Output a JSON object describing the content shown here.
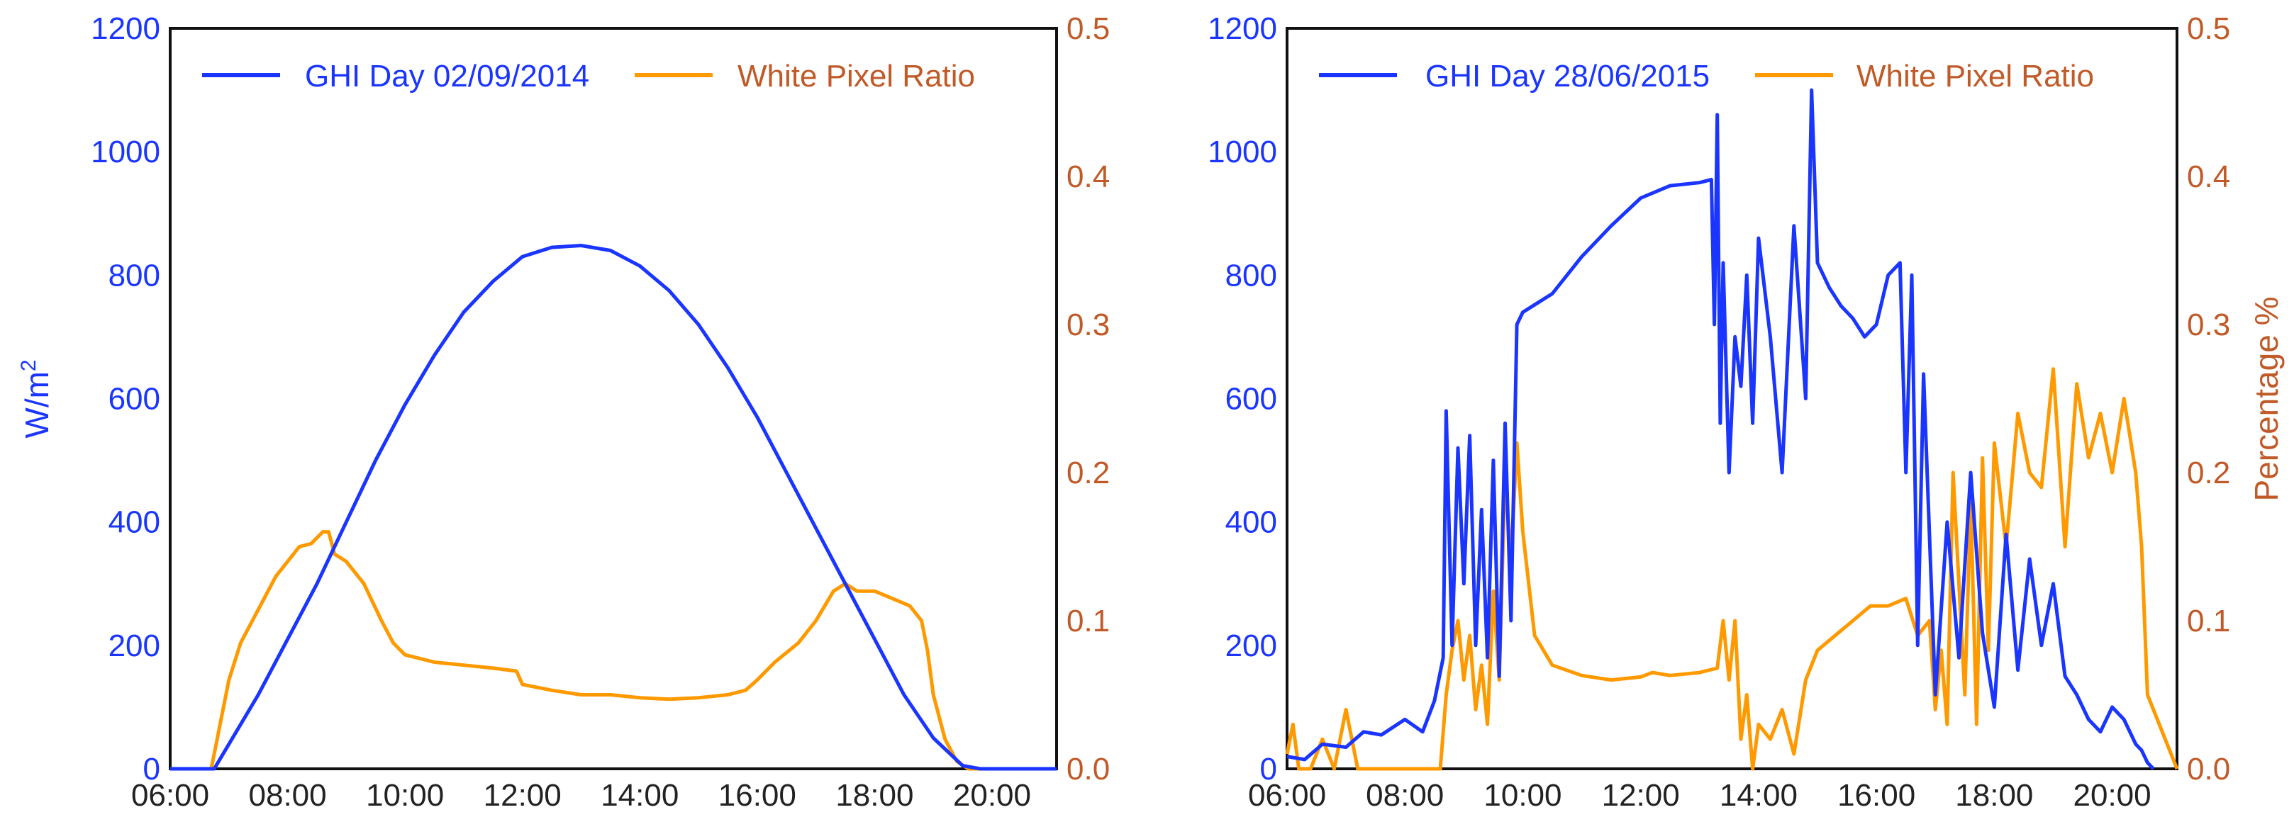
{
  "colors": {
    "ghi": "#1a35ff",
    "wpr": "#ff9900",
    "right_axis": "#c05a28",
    "frame": "#111111"
  },
  "chart_data": [
    {
      "type": "line",
      "panel": "left",
      "title": "",
      "xlabel": "",
      "ylabel_left": "W/m",
      "ylabel_left_sup": "2",
      "ylabel_right": "",
      "x_ticks": [
        "06:00",
        "08:00",
        "10:00",
        "12:00",
        "14:00",
        "16:00",
        "18:00",
        "20:00"
      ],
      "y_left_ticks": [
        "0",
        "200",
        "400",
        "600",
        "800",
        "1000",
        "1200"
      ],
      "y_right_ticks": [
        "0.0",
        "0.1",
        "0.2",
        "0.3",
        "0.4",
        "0.5"
      ],
      "xlim": [
        6.0,
        21.1
      ],
      "ylim_left": [
        0,
        1200
      ],
      "ylim_right": [
        0,
        0.5
      ],
      "legend": [
        "GHI Day 02/09/2014",
        "White Pixel Ratio"
      ],
      "legend_position": "top",
      "series": [
        {
          "name": "GHI Day 02/09/2014",
          "axis": "left",
          "x": [
            6.0,
            6.75,
            7.0,
            7.5,
            8.0,
            8.5,
            9.0,
            9.5,
            10.0,
            10.5,
            11.0,
            11.5,
            12.0,
            12.5,
            13.0,
            13.5,
            14.0,
            14.5,
            15.0,
            15.5,
            16.0,
            16.5,
            17.0,
            17.5,
            18.0,
            18.5,
            19.0,
            19.5,
            19.8,
            21.1
          ],
          "values": [
            0,
            0,
            40,
            120,
            210,
            300,
            400,
            500,
            590,
            670,
            740,
            790,
            830,
            845,
            848,
            840,
            815,
            775,
            720,
            650,
            570,
            480,
            390,
            300,
            210,
            120,
            50,
            5,
            0,
            0
          ]
        },
        {
          "name": "White Pixel Ratio",
          "axis": "right",
          "x": [
            6.0,
            6.7,
            6.8,
            7.0,
            7.2,
            7.4,
            7.6,
            7.8,
            8.0,
            8.2,
            8.4,
            8.6,
            8.7,
            8.8,
            9.0,
            9.3,
            9.6,
            9.8,
            10.0,
            10.5,
            11.0,
            11.5,
            11.9,
            12.0,
            12.5,
            13.0,
            13.5,
            14.0,
            14.5,
            15.0,
            15.5,
            15.8,
            16.0,
            16.3,
            16.7,
            17.0,
            17.3,
            17.5,
            17.7,
            18.0,
            18.3,
            18.6,
            18.8,
            18.9,
            19.0,
            19.2,
            19.4,
            19.6,
            21.1
          ],
          "values": [
            0.0,
            0.0,
            0.02,
            0.06,
            0.085,
            0.1,
            0.115,
            0.13,
            0.14,
            0.15,
            0.152,
            0.16,
            0.16,
            0.145,
            0.14,
            0.125,
            0.1,
            0.085,
            0.077,
            0.072,
            0.07,
            0.068,
            0.066,
            0.057,
            0.053,
            0.05,
            0.05,
            0.048,
            0.047,
            0.048,
            0.05,
            0.053,
            0.06,
            0.072,
            0.085,
            0.1,
            0.12,
            0.125,
            0.12,
            0.12,
            0.115,
            0.11,
            0.1,
            0.08,
            0.05,
            0.02,
            0.005,
            0.0,
            0.0
          ]
        }
      ]
    },
    {
      "type": "line",
      "panel": "right",
      "title": "",
      "xlabel": "",
      "ylabel_left": "",
      "ylabel_right": "Percentage %",
      "x_ticks": [
        "06:00",
        "08:00",
        "10:00",
        "12:00",
        "14:00",
        "16:00",
        "18:00",
        "20:00"
      ],
      "y_left_ticks": [
        "0",
        "200",
        "400",
        "600",
        "800",
        "1000",
        "1200"
      ],
      "y_right_ticks": [
        "0.0",
        "0.1",
        "0.2",
        "0.3",
        "0.4",
        "0.5"
      ],
      "xlim": [
        6.0,
        21.1
      ],
      "ylim_left": [
        0,
        1200
      ],
      "ylim_right": [
        0,
        0.5
      ],
      "legend": [
        "GHI Day 28/06/2015",
        "White Pixel Ratio"
      ],
      "legend_position": "top",
      "series": [
        {
          "name": "GHI Day 28/06/2015",
          "axis": "left",
          "x": [
            6.0,
            6.3,
            6.6,
            7.0,
            7.3,
            7.6,
            8.0,
            8.3,
            8.5,
            8.65,
            8.7,
            8.8,
            8.9,
            9.0,
            9.1,
            9.2,
            9.3,
            9.4,
            9.5,
            9.6,
            9.7,
            9.8,
            9.9,
            10.0,
            10.5,
            11.0,
            11.5,
            12.0,
            12.5,
            13.0,
            13.2,
            13.25,
            13.3,
            13.35,
            13.4,
            13.5,
            13.6,
            13.7,
            13.8,
            13.9,
            14.0,
            14.2,
            14.4,
            14.6,
            14.8,
            14.9,
            15.0,
            15.2,
            15.4,
            15.6,
            15.8,
            16.0,
            16.2,
            16.4,
            16.5,
            16.6,
            16.7,
            16.8,
            17.0,
            17.2,
            17.4,
            17.6,
            17.8,
            18.0,
            18.2,
            18.4,
            18.6,
            18.8,
            19.0,
            19.2,
            19.4,
            19.6,
            19.8,
            20.0,
            20.2,
            20.4,
            20.5,
            20.6,
            20.7
          ],
          "values": [
            20,
            15,
            40,
            35,
            60,
            55,
            80,
            60,
            110,
            180,
            580,
            200,
            520,
            300,
            540,
            200,
            420,
            180,
            500,
            150,
            560,
            240,
            720,
            740,
            770,
            830,
            880,
            925,
            945,
            950,
            955,
            720,
            1060,
            560,
            820,
            480,
            700,
            620,
            800,
            560,
            860,
            700,
            480,
            880,
            600,
            1100,
            820,
            780,
            750,
            730,
            700,
            720,
            800,
            820,
            480,
            800,
            200,
            640,
            120,
            400,
            180,
            480,
            220,
            100,
            380,
            160,
            340,
            200,
            300,
            150,
            120,
            80,
            60,
            100,
            80,
            40,
            30,
            10,
            0
          ]
        },
        {
          "name": "White Pixel Ratio",
          "axis": "right",
          "x": [
            6.0,
            6.1,
            6.2,
            6.4,
            6.6,
            6.8,
            7.0,
            7.2,
            7.4,
            7.6,
            7.8,
            8.0,
            8.2,
            8.4,
            8.6,
            8.7,
            8.8,
            8.9,
            9.0,
            9.1,
            9.2,
            9.3,
            9.4,
            9.5,
            9.6,
            9.7,
            9.8,
            9.9,
            10.0,
            10.2,
            10.5,
            11.0,
            11.5,
            12.0,
            12.2,
            12.5,
            13.0,
            13.3,
            13.4,
            13.5,
            13.6,
            13.7,
            13.8,
            13.9,
            14.0,
            14.2,
            14.4,
            14.6,
            14.8,
            15.0,
            15.3,
            15.6,
            15.9,
            16.2,
            16.5,
            16.7,
            16.9,
            17.0,
            17.1,
            17.2,
            17.3,
            17.5,
            17.6,
            17.7,
            17.8,
            17.9,
            18.0,
            18.2,
            18.4,
            18.6,
            18.8,
            19.0,
            19.2,
            19.4,
            19.6,
            19.8,
            20.0,
            20.2,
            20.4,
            20.5,
            20.6,
            21.1
          ],
          "values": [
            0.01,
            0.03,
            0.0,
            0.0,
            0.02,
            0.0,
            0.04,
            0.0,
            0.0,
            0.0,
            0.0,
            0.0,
            0.0,
            0.0,
            0.0,
            0.05,
            0.08,
            0.1,
            0.06,
            0.09,
            0.04,
            0.07,
            0.03,
            0.12,
            0.06,
            0.2,
            0.14,
            0.22,
            0.16,
            0.09,
            0.07,
            0.063,
            0.06,
            0.062,
            0.065,
            0.063,
            0.065,
            0.068,
            0.1,
            0.06,
            0.1,
            0.02,
            0.05,
            0.0,
            0.03,
            0.02,
            0.04,
            0.01,
            0.06,
            0.08,
            0.09,
            0.1,
            0.11,
            0.11,
            0.115,
            0.09,
            0.1,
            0.04,
            0.08,
            0.03,
            0.2,
            0.05,
            0.18,
            0.03,
            0.21,
            0.08,
            0.22,
            0.15,
            0.24,
            0.2,
            0.19,
            0.27,
            0.15,
            0.26,
            0.21,
            0.24,
            0.2,
            0.25,
            0.2,
            0.15,
            0.05,
            0.0
          ]
        }
      ]
    }
  ]
}
